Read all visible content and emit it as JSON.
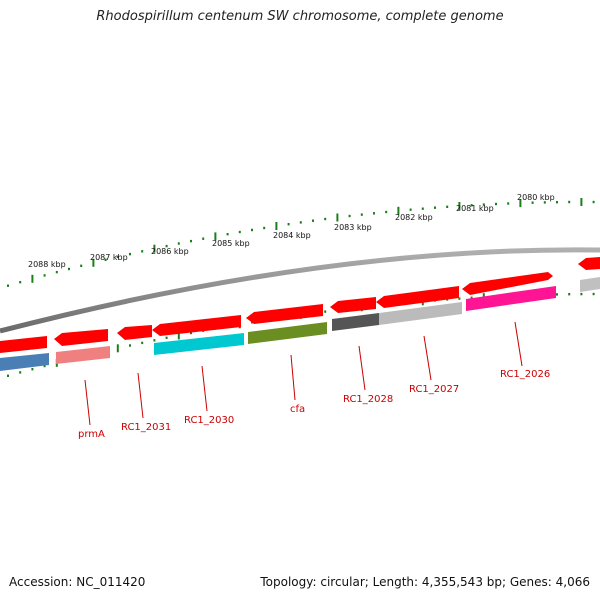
{
  "title": "Rhodospirillum centenum SW chromosome, complete genome",
  "accession_text": "Accession: NC_011420",
  "topology_text": "Topology: circular; Length: 4,355,543 bp; Genes: 4,066",
  "scale_labels": [
    "2088 kbp",
    "2087 kbp",
    "2086 kbp",
    "2085 kbp",
    "2084 kbp",
    "2083 kbp",
    "2082 kbp",
    "2081 kbp",
    "2080 kbp"
  ],
  "genes": [
    {
      "label": "prmA",
      "color": "#f08080",
      "strand": "minus"
    },
    {
      "label": "RC1_2031",
      "color": "#ff0000",
      "strand": "plus"
    },
    {
      "label": "RC1_2030",
      "color": "#00c8d0",
      "strand": "minus"
    },
    {
      "label": "cfa",
      "color": "#6b8e23",
      "strand": "minus"
    },
    {
      "label": "RC1_2028",
      "color": "#555555",
      "strand": "minus"
    },
    {
      "label": "RC1_2027",
      "color": "#bbbbbb",
      "strand": "minus"
    },
    {
      "label": "RC1_2026",
      "color": "#ff1493",
      "strand": "minus"
    }
  ],
  "colors": {
    "plus_strand": "#ff0000",
    "backbone": "#8c8c8c",
    "tick": "#1a7f1a",
    "label": "#cc0000",
    "blue_gene": "#4a7fb5"
  }
}
